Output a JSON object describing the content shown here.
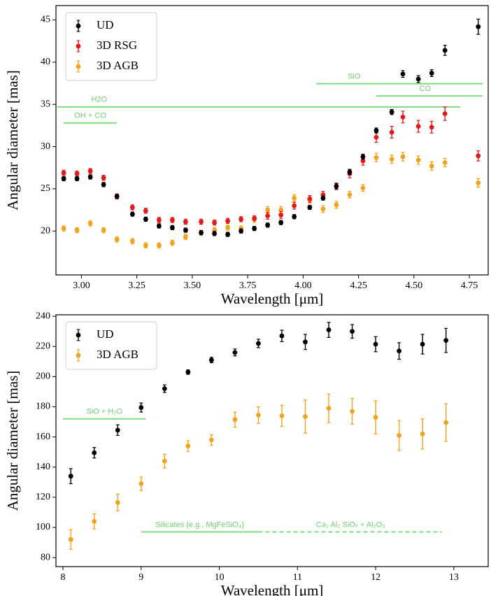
{
  "chart_data": [
    {
      "type": "scatter",
      "xlabel": "Wavelength [μm]",
      "ylabel": "Angular diameter [mas]",
      "xlim": [
        2.885,
        4.835
      ],
      "ylim": [
        14.8,
        46.7
      ],
      "xticks": [
        {
          "value": 3,
          "label": "3.00"
        },
        {
          "value": 3.25,
          "label": "3.25"
        },
        {
          "value": 3.5,
          "label": "3.50"
        },
        {
          "value": 3.75,
          "label": "3.75"
        },
        {
          "value": 4,
          "label": "4.00"
        },
        {
          "value": 4.25,
          "label": "4.25"
        },
        {
          "value": 4.5,
          "label": "4.50"
        },
        {
          "value": 4.75,
          "label": "4.75"
        }
      ],
      "yticks": [
        20,
        25,
        30,
        35,
        40,
        45
      ],
      "legend": "upper left",
      "x": [
        2.92,
        2.98,
        3.04,
        3.1,
        3.16,
        3.23,
        3.29,
        3.35,
        3.41,
        3.47,
        3.54,
        3.6,
        3.66,
        3.72,
        3.78,
        3.84,
        3.9,
        3.96,
        4.03,
        4.09,
        4.15,
        4.21,
        4.27,
        4.33,
        4.4,
        4.45,
        4.52,
        4.58,
        4.64,
        4.79
      ],
      "series": [
        {
          "name": "UD",
          "color": "#000000",
          "values": [
            26.2,
            26.2,
            26.4,
            25.5,
            24.1,
            22.0,
            21.4,
            20.6,
            20.4,
            20.1,
            19.8,
            19.7,
            19.6,
            20.0,
            20.3,
            20.7,
            21.0,
            21.7,
            22.8,
            23.9,
            25.3,
            27.0,
            28.8,
            31.9,
            34.1,
            38.6,
            38.0,
            38.7,
            41.4,
            44.2
          ],
          "errors": [
            0.25,
            0.25,
            0.25,
            0.25,
            0.25,
            0.25,
            0.25,
            0.25,
            0.25,
            0.25,
            0.25,
            0.25,
            0.25,
            0.25,
            0.25,
            0.25,
            0.25,
            0.25,
            0.25,
            0.25,
            0.3,
            0.3,
            0.3,
            0.3,
            0.3,
            0.4,
            0.4,
            0.4,
            0.6,
            0.9
          ]
        },
        {
          "name": "3D RSG",
          "color": "#e31a1c",
          "values": [
            26.9,
            26.8,
            27.1,
            26.3,
            24.1,
            22.8,
            22.4,
            21.3,
            21.3,
            21.1,
            21.1,
            21.0,
            21.2,
            21.4,
            21.5,
            21.8,
            21.9,
            23.0,
            23.8,
            24.3,
            25.3,
            26.8,
            28.3,
            31.1,
            31.7,
            33.5,
            32.4,
            32.3,
            33.9,
            28.9
          ],
          "errors": [
            0.3,
            0.3,
            0.3,
            0.3,
            0.3,
            0.3,
            0.3,
            0.3,
            0.3,
            0.3,
            0.3,
            0.3,
            0.3,
            0.3,
            0.3,
            0.4,
            0.4,
            0.4,
            0.4,
            0.4,
            0.4,
            0.5,
            0.5,
            0.6,
            0.7,
            0.7,
            0.7,
            0.7,
            0.8,
            0.6
          ]
        },
        {
          "name": "3D AGB",
          "color": "#f0a31c",
          "values": [
            20.3,
            20.1,
            20.9,
            20.1,
            19.0,
            18.8,
            18.3,
            18.3,
            18.6,
            19.3,
            19.8,
            20.1,
            20.4,
            20.3,
            21.4,
            22.5,
            22.5,
            23.9,
            23.7,
            22.6,
            23.1,
            24.3,
            25.1,
            28.7,
            28.5,
            28.8,
            28.4,
            27.7,
            28.1,
            25.7
          ],
          "errors": [
            0.3,
            0.3,
            0.3,
            0.3,
            0.3,
            0.3,
            0.3,
            0.3,
            0.3,
            0.3,
            0.3,
            0.3,
            0.3,
            0.3,
            0.4,
            0.4,
            0.4,
            0.4,
            0.4,
            0.4,
            0.4,
            0.4,
            0.4,
            0.5,
            0.5,
            0.5,
            0.5,
            0.5,
            0.5,
            0.5
          ]
        }
      ],
      "annotations": [
        {
          "text": "H2O",
          "x": [
            2.89,
            4.71
          ],
          "y": 34.7,
          "text_x": 3.08,
          "style": "solid"
        },
        {
          "text": "OH + CO",
          "x": [
            2.92,
            3.16
          ],
          "y": 32.8,
          "text_x": 3.04,
          "style": "solid"
        },
        {
          "text": "SiO",
          "x": [
            4.06,
            4.81
          ],
          "y": 37.45,
          "text_x": 4.23,
          "style": "solid"
        },
        {
          "text": "CO",
          "x": [
            4.33,
            4.81
          ],
          "y": 36.0,
          "text_x": 4.55,
          "style": "solid"
        }
      ]
    },
    {
      "type": "scatter",
      "xlabel": "Wavelength [μm]",
      "ylabel": "Angular diameter [mas]",
      "xlim": [
        7.91,
        13.44
      ],
      "ylim": [
        74,
        241
      ],
      "xticks": [
        8,
        9,
        10,
        11,
        12,
        13
      ],
      "yticks": [
        80,
        100,
        120,
        140,
        160,
        180,
        200,
        220,
        240
      ],
      "legend": "upper left",
      "x": [
        8.1,
        8.4,
        8.7,
        9.0,
        9.3,
        9.6,
        9.9,
        10.2,
        10.5,
        10.8,
        11.1,
        11.4,
        11.7,
        12.0,
        12.3,
        12.6,
        12.9
      ],
      "series": [
        {
          "name": "UD",
          "color": "#000000",
          "values": [
            134,
            149.5,
            164.5,
            179.5,
            192,
            203,
            211,
            216,
            222,
            227,
            223,
            231,
            230,
            221.5,
            217,
            221.5,
            224
          ],
          "errors": [
            5,
            3.5,
            3.5,
            3,
            2.5,
            1.5,
            1.8,
            2.3,
            2.8,
            3.8,
            5,
            5,
            4.5,
            5,
            5.5,
            6.5,
            8
          ]
        },
        {
          "name": "3D AGB",
          "color": "#f0a31c",
          "values": [
            92,
            104,
            116.5,
            129,
            144,
            154,
            158,
            171.5,
            174.5,
            174,
            173.5,
            179,
            177,
            173,
            161,
            162,
            169.5
          ],
          "errors": [
            6.5,
            5,
            5.5,
            4.5,
            4.5,
            3.5,
            3.5,
            5,
            5.5,
            7,
            11,
            9.5,
            8.5,
            11,
            10,
            10,
            12.5
          ]
        }
      ],
      "annotations": [
        {
          "text": "SiO + H₂O",
          "x": [
            8.0,
            9.06
          ],
          "y": 172,
          "text_x": 8.53,
          "style": "solid"
        },
        {
          "text": "Silicates (e.g., MgFeSiO₄)",
          "x": [
            9.0,
            10.5
          ],
          "y": 97,
          "text_x": 9.75,
          "style": "solid"
        },
        {
          "text": "Ca₂ Al₂ SiO₇ + Al₂O₃",
          "x": [
            10.5,
            12.85
          ],
          "y": 97,
          "text_x": 11.68,
          "style": "dashed"
        }
      ]
    }
  ]
}
